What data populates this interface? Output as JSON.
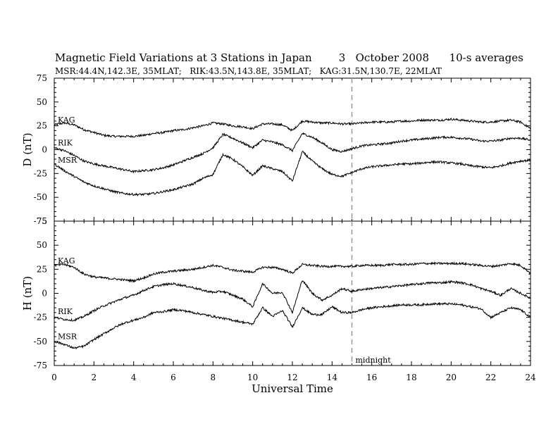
{
  "chart_data": {
    "type": "line",
    "title": "Magnetic Field Variations at 3 Stations in Japan        3   October 2008      10-s averages",
    "subtitle": "MSR:44.4N,142.3E, 35MLAT;   RIK:43.5N,143.8E, 35MLAT;   KAG:31.5N,130.7E, 22MLAT",
    "xlabel": "Universal Time",
    "xlim": [
      0,
      24
    ],
    "x_ticks": [
      "0",
      "2",
      "4",
      "6",
      "8",
      "10",
      "12",
      "14",
      "16",
      "18",
      "20",
      "22",
      "24"
    ],
    "x": [
      0,
      0.5,
      1,
      1.5,
      2,
      2.5,
      3,
      3.5,
      4,
      4.5,
      5,
      5.5,
      6,
      6.5,
      7,
      7.5,
      8,
      8.5,
      9,
      9.5,
      10,
      10.5,
      11,
      11.5,
      12,
      12.5,
      13,
      13.5,
      14,
      14.5,
      15,
      15.5,
      16,
      16.5,
      17,
      17.5,
      18,
      18.5,
      19,
      19.5,
      20,
      20.5,
      21,
      21.5,
      22,
      22.5,
      23,
      23.5,
      24
    ],
    "marker": {
      "x": 15,
      "label": "midnight"
    },
    "panels": [
      {
        "ylabel": "D (nT)",
        "ylim": [
          -75,
          75
        ],
        "y_ticks": [
          "75",
          "50",
          "25",
          "0",
          "-25",
          "-50",
          "-75"
        ],
        "series": [
          {
            "name": "KAG",
            "values": [
              26,
              28,
              26,
              21,
              18,
              15,
              14,
              14,
              14,
              15,
              17,
              18,
              20,
              21,
              23,
              25,
              28,
              27,
              25,
              24,
              22,
              27,
              27,
              26,
              20,
              30,
              29,
              28,
              28,
              27,
              27,
              28,
              29,
              29,
              29,
              30,
              30,
              31,
              31,
              31,
              32,
              31,
              30,
              29,
              29,
              30,
              31,
              29,
              22
            ]
          },
          {
            "name": "RIK",
            "values": [
              2,
              -1,
              -6,
              -12,
              -15,
              -17,
              -19,
              -21,
              -23,
              -22,
              -21,
              -19,
              -16,
              -12,
              -8,
              -4,
              2,
              16,
              12,
              7,
              2,
              10,
              8,
              5,
              -1,
              17,
              13,
              7,
              0,
              -2,
              1,
              4,
              5,
              6,
              7,
              9,
              10,
              11,
              12,
              13,
              13,
              12,
              11,
              9,
              9,
              10,
              12,
              12,
              10
            ]
          },
          {
            "name": "MSR",
            "values": [
              -15,
              -22,
              -28,
              -34,
              -38,
              -41,
              -44,
              -46,
              -47,
              -47,
              -46,
              -44,
              -42,
              -39,
              -36,
              -30,
              -26,
              -5,
              -10,
              -18,
              -27,
              -17,
              -20,
              -23,
              -33,
              -2,
              -12,
              -20,
              -26,
              -28,
              -24,
              -20,
              -18,
              -17,
              -16,
              -15,
              -15,
              -14,
              -13,
              -13,
              -14,
              -15,
              -17,
              -18,
              -19,
              -17,
              -14,
              -12,
              -11
            ]
          }
        ]
      },
      {
        "ylabel": "H (nT)",
        "ylim": [
          -75,
          75
        ],
        "y_ticks": [
          "75",
          "50",
          "25",
          "0",
          "-25",
          "-50",
          "-75"
        ],
        "series": [
          {
            "name": "KAG",
            "values": [
              29,
              30,
              27,
              20,
              17,
              16,
              15,
              14,
              13,
              16,
              20,
              22,
              23,
              24,
              25,
              27,
              29,
              27,
              24,
              23,
              22,
              27,
              27,
              25,
              21,
              30,
              29,
              28,
              28,
              28,
              28,
              29,
              29,
              29,
              30,
              30,
              30,
              31,
              31,
              31,
              31,
              31,
              30,
              29,
              28,
              29,
              31,
              29,
              21
            ]
          },
          {
            "name": "RIK",
            "values": [
              -25,
              -27,
              -28,
              -24,
              -18,
              -13,
              -9,
              -5,
              -2,
              3,
              7,
              9,
              10,
              8,
              6,
              3,
              1,
              2,
              -2,
              -6,
              -14,
              10,
              0,
              1,
              -20,
              14,
              0,
              -7,
              -2,
              5,
              2,
              4,
              5,
              6,
              7,
              8,
              9,
              10,
              11,
              11,
              12,
              11,
              9,
              5,
              2,
              -2,
              5,
              0,
              -5
            ]
          },
          {
            "name": "MSR",
            "values": [
              -50,
              -53,
              -57,
              -55,
              -48,
              -42,
              -36,
              -31,
              -28,
              -25,
              -20,
              -19,
              -17,
              -18,
              -20,
              -22,
              -24,
              -26,
              -28,
              -30,
              -32,
              -15,
              -24,
              -18,
              -35,
              -15,
              -22,
              -22,
              -14,
              -20,
              -20,
              -17,
              -15,
              -14,
              -13,
              -12,
              -12,
              -12,
              -11,
              -11,
              -11,
              -12,
              -14,
              -16,
              -25,
              -20,
              -15,
              -17,
              -25
            ]
          }
        ]
      }
    ]
  }
}
